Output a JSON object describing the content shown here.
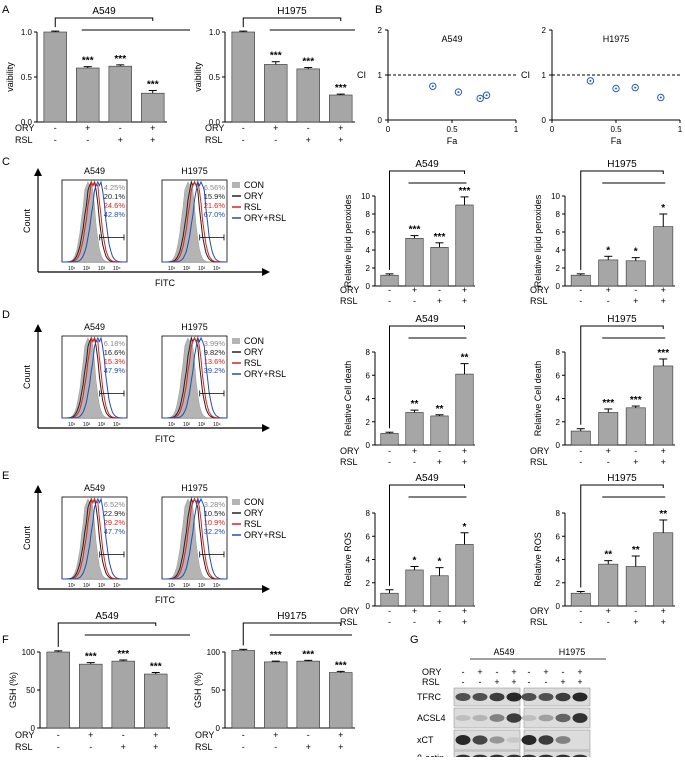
{
  "panel_letters": [
    "A",
    "B",
    "C",
    "D",
    "E",
    "F",
    "G"
  ],
  "row_labels": {
    "ory": "ORY",
    "rsl": "RSL"
  },
  "bars": [
    {
      "id": "A-A549",
      "title": "A549",
      "ylabel": "vaibility",
      "ylim": [
        0,
        1.0
      ],
      "yticks": [
        "0.0",
        "0.5",
        "1.0"
      ],
      "values": [
        1.0,
        0.6,
        0.62,
        0.32
      ],
      "errors": [
        0.01,
        0.015,
        0.015,
        0.03
      ],
      "stars": [
        "",
        "***",
        "***",
        "***"
      ],
      "ory": [
        "-",
        "+",
        "-",
        "+"
      ],
      "rsl": [
        "-",
        "-",
        "+",
        "+"
      ]
    },
    {
      "id": "A-H1975",
      "title": "H1975",
      "ylabel": "vaibility",
      "ylim": [
        0,
        1.0
      ],
      "yticks": [
        "0.0",
        "0.5",
        "1.0"
      ],
      "values": [
        1.0,
        0.64,
        0.59,
        0.3
      ],
      "errors": [
        0.01,
        0.03,
        0.015,
        0.01
      ],
      "stars": [
        "",
        "***",
        "***",
        "***"
      ],
      "ory": [
        "-",
        "+",
        "-",
        "+"
      ],
      "rsl": [
        "-",
        "-",
        "+",
        "+"
      ]
    },
    {
      "id": "C-A549",
      "title": "A549",
      "ylabel": "Relative lipid peroxides",
      "ylim": [
        0,
        10
      ],
      "yticks": [
        "0",
        "2",
        "4",
        "6",
        "8",
        "10"
      ],
      "values": [
        1.2,
        5.3,
        4.3,
        9.0
      ],
      "errors": [
        0.15,
        0.3,
        0.5,
        0.9
      ],
      "stars": [
        "",
        "***",
        "***",
        "***"
      ],
      "ory": [
        "-",
        "+",
        "-",
        "+"
      ],
      "rsl": [
        "-",
        "-",
        "+",
        "+"
      ]
    },
    {
      "id": "C-H1975",
      "title": "H1975",
      "ylabel": "Relative lipid peroxides",
      "ylim": [
        0,
        10
      ],
      "yticks": [
        "0",
        "2",
        "4",
        "6",
        "8",
        "10"
      ],
      "values": [
        1.2,
        2.9,
        2.8,
        6.6
      ],
      "errors": [
        0.15,
        0.4,
        0.35,
        1.4
      ],
      "stars": [
        "",
        "*",
        "*",
        "*"
      ],
      "ory": [
        "-",
        "+",
        "-",
        "+"
      ],
      "rsl": [
        "-",
        "-",
        "+",
        "+"
      ]
    },
    {
      "id": "D-A549",
      "title": "A549",
      "ylabel": "Relative Cell death",
      "ylim": [
        0,
        8
      ],
      "yticks": [
        "0",
        "2",
        "4",
        "6",
        "8"
      ],
      "values": [
        1.0,
        2.8,
        2.5,
        6.1
      ],
      "errors": [
        0.1,
        0.2,
        0.1,
        0.9
      ],
      "stars": [
        "",
        "**",
        "**",
        "**"
      ],
      "ory": [
        "-",
        "+",
        "-",
        "+"
      ],
      "rsl": [
        "-",
        "-",
        "+",
        "+"
      ]
    },
    {
      "id": "D-H1975",
      "title": "H1975",
      "ylabel": "Relative Cell death",
      "ylim": [
        0,
        8
      ],
      "yticks": [
        "0",
        "2",
        "4",
        "6",
        "8"
      ],
      "values": [
        1.2,
        2.8,
        3.2,
        6.8
      ],
      "errors": [
        0.2,
        0.3,
        0.15,
        0.6
      ],
      "stars": [
        "",
        "***",
        "***",
        "***"
      ],
      "ory": [
        "-",
        "+",
        "-",
        "+"
      ],
      "rsl": [
        "-",
        "-",
        "+",
        "+"
      ]
    },
    {
      "id": "E-A549",
      "title": "A549",
      "ylabel": "Relative ROS",
      "ylim": [
        0,
        8
      ],
      "yticks": [
        "0",
        "2",
        "4",
        "6",
        "8"
      ],
      "values": [
        1.1,
        3.1,
        2.6,
        5.3
      ],
      "errors": [
        0.3,
        0.3,
        0.7,
        1.0
      ],
      "stars": [
        "",
        "*",
        "*",
        "*"
      ],
      "ory": [
        "-",
        "+",
        "-",
        "+"
      ],
      "rsl": [
        "-",
        "-",
        "+",
        "+"
      ]
    },
    {
      "id": "E-H1975",
      "title": "H1975",
      "ylabel": "Relative ROS",
      "ylim": [
        0,
        8
      ],
      "yticks": [
        "0",
        "2",
        "4",
        "6",
        "8"
      ],
      "values": [
        1.1,
        3.6,
        3.4,
        6.3
      ],
      "errors": [
        0.15,
        0.3,
        0.9,
        1.1
      ],
      "stars": [
        "",
        "**",
        "**",
        "**"
      ],
      "ory": [
        "-",
        "+",
        "-",
        "+"
      ],
      "rsl": [
        "-",
        "-",
        "+",
        "+"
      ]
    },
    {
      "id": "F-A549",
      "title": "A549",
      "ylabel": "GSH (%)",
      "ylim": [
        0,
        100
      ],
      "yticks": [
        "0",
        "50",
        "100"
      ],
      "values": [
        100,
        84,
        88,
        71
      ],
      "errors": [
        1.5,
        2,
        1.5,
        2
      ],
      "stars": [
        "",
        "***",
        "***",
        "***"
      ],
      "ory": [
        "-",
        "+",
        "-",
        "+"
      ],
      "rsl": [
        "-",
        "-",
        "+",
        "+"
      ]
    },
    {
      "id": "F-H9175",
      "title": "H9175",
      "ylabel": "GSH (%)",
      "ylim": [
        0,
        100
      ],
      "yticks": [
        "0",
        "50",
        "100"
      ],
      "values": [
        102,
        87,
        88,
        73
      ],
      "errors": [
        1.5,
        1,
        1,
        1.5
      ],
      "stars": [
        "",
        "***",
        "***",
        "***"
      ],
      "ory": [
        "-",
        "+",
        "-",
        "+"
      ],
      "rsl": [
        "-",
        "-",
        "+",
        "+"
      ]
    }
  ],
  "ci_plots": [
    {
      "id": "B-A549",
      "title": "A549",
      "xlabel": "Fa",
      "ylabel": "CI",
      "xlim": [
        0,
        1
      ],
      "ylim": [
        0,
        2
      ],
      "xticks": [
        "0",
        "0.5",
        "1"
      ],
      "yticks": [
        "0",
        "1",
        "2"
      ],
      "points": [
        [
          0.35,
          0.75
        ],
        [
          0.55,
          0.62
        ],
        [
          0.72,
          0.48
        ],
        [
          0.77,
          0.55
        ]
      ]
    },
    {
      "id": "B-H1975",
      "title": "H1975",
      "xlabel": "Fa",
      "ylabel": "CI",
      "xlim": [
        0,
        1
      ],
      "ylim": [
        0,
        2
      ],
      "xticks": [
        "0",
        "0.5",
        "1"
      ],
      "yticks": [
        "0",
        "1",
        "2"
      ],
      "points": [
        [
          0.3,
          0.87
        ],
        [
          0.5,
          0.7
        ],
        [
          0.65,
          0.72
        ],
        [
          0.85,
          0.5
        ]
      ]
    }
  ],
  "flow": [
    {
      "id": "C-flow",
      "xlabel": "FITC",
      "ylabel": "Count",
      "cells": [
        {
          "title": "A549",
          "pcts": [
            "4.25%",
            "20.1%",
            "24.6%",
            "42.8%"
          ]
        },
        {
          "title": "H1975",
          "pcts": [
            "6.56%",
            "15.9%",
            "21.6%",
            "67.0%"
          ]
        }
      ],
      "legend": [
        "CON",
        "ORY",
        "RSL",
        "ORY+RSL"
      ]
    },
    {
      "id": "D-flow",
      "xlabel": "FITC",
      "ylabel": "Count",
      "cells": [
        {
          "title": "A549",
          "pcts": [
            "6.18%",
            "16.6%",
            "15.3%",
            "47.9%"
          ]
        },
        {
          "title": "H1975",
          "pcts": [
            "3.99%",
            "9.82%",
            "13.6%",
            "39.2%"
          ]
        }
      ],
      "legend": [
        "CON",
        "ORY",
        "RSL",
        "ORY+RSL"
      ]
    },
    {
      "id": "E-flow",
      "xlabel": "FITC",
      "ylabel": "Count",
      "cells": [
        {
          "title": "A549",
          "pcts": [
            "6.52%",
            "22.9%",
            "29.2%",
            "47.7%"
          ]
        },
        {
          "title": "H1975",
          "pcts": [
            "3.28%",
            "10.5%",
            "10.9%",
            "32.2%"
          ]
        }
      ],
      "legend": [
        "CON",
        "ORY",
        "RSL",
        "ORY+RSL"
      ]
    }
  ],
  "flow_ticks": [
    "10¹",
    "10²",
    "10³",
    "10⁴"
  ],
  "western": {
    "cells": [
      "A549",
      "H1975"
    ],
    "ory": [
      "-",
      "+",
      "-",
      "+",
      "-",
      "+",
      "-",
      "+"
    ],
    "rsl": [
      "-",
      "-",
      "+",
      "+",
      "-",
      "-",
      "+",
      "+"
    ],
    "proteins": [
      {
        "name": "TFRC",
        "intensity": [
          0.7,
          0.7,
          0.8,
          0.9,
          0.7,
          0.7,
          0.8,
          0.9
        ]
      },
      {
        "name": "ACSL4",
        "intensity": [
          0.15,
          0.2,
          0.45,
          0.8,
          0.15,
          0.3,
          0.6,
          0.85
        ]
      },
      {
        "name": "xCT",
        "intensity": [
          0.9,
          0.75,
          0.35,
          0.1,
          0.9,
          0.8,
          0.45,
          0.0
        ]
      },
      {
        "name": "β-actin",
        "intensity": [
          0.85,
          0.85,
          0.85,
          0.85,
          0.85,
          0.85,
          0.85,
          0.85
        ]
      }
    ]
  },
  "colors": {
    "bar": "#a6a6a6",
    "con_fill": "#b4b4b4",
    "ory": "#222222",
    "rsl": "#e0201e",
    "ory_rsl": "#1f4fb0",
    "ci_point": "#2b5fb0",
    "con_text": "#888888"
  }
}
